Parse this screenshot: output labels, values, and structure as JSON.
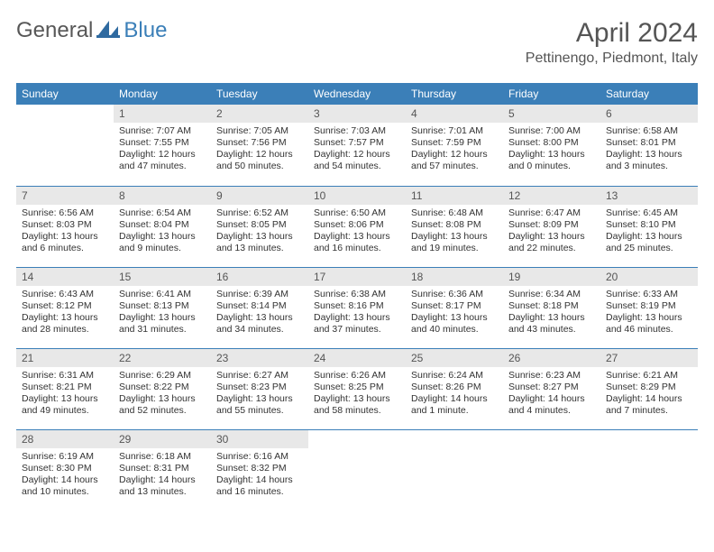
{
  "logo": {
    "general": "General",
    "blue": "Blue"
  },
  "title": "April 2024",
  "location": "Pettinengo, Piedmont, Italy",
  "colors": {
    "header_bg": "#3b7fb8",
    "header_text": "#ffffff",
    "daynum_bg": "#e8e8e8",
    "border": "#3b7fb8",
    "body_text": "#333333"
  },
  "day_labels": [
    "Sunday",
    "Monday",
    "Tuesday",
    "Wednesday",
    "Thursday",
    "Friday",
    "Saturday"
  ],
  "weeks": [
    [
      {
        "n": "",
        "sr": "",
        "ss": "",
        "dl": ""
      },
      {
        "n": "1",
        "sr": "Sunrise: 7:07 AM",
        "ss": "Sunset: 7:55 PM",
        "dl": "Daylight: 12 hours and 47 minutes."
      },
      {
        "n": "2",
        "sr": "Sunrise: 7:05 AM",
        "ss": "Sunset: 7:56 PM",
        "dl": "Daylight: 12 hours and 50 minutes."
      },
      {
        "n": "3",
        "sr": "Sunrise: 7:03 AM",
        "ss": "Sunset: 7:57 PM",
        "dl": "Daylight: 12 hours and 54 minutes."
      },
      {
        "n": "4",
        "sr": "Sunrise: 7:01 AM",
        "ss": "Sunset: 7:59 PM",
        "dl": "Daylight: 12 hours and 57 minutes."
      },
      {
        "n": "5",
        "sr": "Sunrise: 7:00 AM",
        "ss": "Sunset: 8:00 PM",
        "dl": "Daylight: 13 hours and 0 minutes."
      },
      {
        "n": "6",
        "sr": "Sunrise: 6:58 AM",
        "ss": "Sunset: 8:01 PM",
        "dl": "Daylight: 13 hours and 3 minutes."
      }
    ],
    [
      {
        "n": "7",
        "sr": "Sunrise: 6:56 AM",
        "ss": "Sunset: 8:03 PM",
        "dl": "Daylight: 13 hours and 6 minutes."
      },
      {
        "n": "8",
        "sr": "Sunrise: 6:54 AM",
        "ss": "Sunset: 8:04 PM",
        "dl": "Daylight: 13 hours and 9 minutes."
      },
      {
        "n": "9",
        "sr": "Sunrise: 6:52 AM",
        "ss": "Sunset: 8:05 PM",
        "dl": "Daylight: 13 hours and 13 minutes."
      },
      {
        "n": "10",
        "sr": "Sunrise: 6:50 AM",
        "ss": "Sunset: 8:06 PM",
        "dl": "Daylight: 13 hours and 16 minutes."
      },
      {
        "n": "11",
        "sr": "Sunrise: 6:48 AM",
        "ss": "Sunset: 8:08 PM",
        "dl": "Daylight: 13 hours and 19 minutes."
      },
      {
        "n": "12",
        "sr": "Sunrise: 6:47 AM",
        "ss": "Sunset: 8:09 PM",
        "dl": "Daylight: 13 hours and 22 minutes."
      },
      {
        "n": "13",
        "sr": "Sunrise: 6:45 AM",
        "ss": "Sunset: 8:10 PM",
        "dl": "Daylight: 13 hours and 25 minutes."
      }
    ],
    [
      {
        "n": "14",
        "sr": "Sunrise: 6:43 AM",
        "ss": "Sunset: 8:12 PM",
        "dl": "Daylight: 13 hours and 28 minutes."
      },
      {
        "n": "15",
        "sr": "Sunrise: 6:41 AM",
        "ss": "Sunset: 8:13 PM",
        "dl": "Daylight: 13 hours and 31 minutes."
      },
      {
        "n": "16",
        "sr": "Sunrise: 6:39 AM",
        "ss": "Sunset: 8:14 PM",
        "dl": "Daylight: 13 hours and 34 minutes."
      },
      {
        "n": "17",
        "sr": "Sunrise: 6:38 AM",
        "ss": "Sunset: 8:16 PM",
        "dl": "Daylight: 13 hours and 37 minutes."
      },
      {
        "n": "18",
        "sr": "Sunrise: 6:36 AM",
        "ss": "Sunset: 8:17 PM",
        "dl": "Daylight: 13 hours and 40 minutes."
      },
      {
        "n": "19",
        "sr": "Sunrise: 6:34 AM",
        "ss": "Sunset: 8:18 PM",
        "dl": "Daylight: 13 hours and 43 minutes."
      },
      {
        "n": "20",
        "sr": "Sunrise: 6:33 AM",
        "ss": "Sunset: 8:19 PM",
        "dl": "Daylight: 13 hours and 46 minutes."
      }
    ],
    [
      {
        "n": "21",
        "sr": "Sunrise: 6:31 AM",
        "ss": "Sunset: 8:21 PM",
        "dl": "Daylight: 13 hours and 49 minutes."
      },
      {
        "n": "22",
        "sr": "Sunrise: 6:29 AM",
        "ss": "Sunset: 8:22 PM",
        "dl": "Daylight: 13 hours and 52 minutes."
      },
      {
        "n": "23",
        "sr": "Sunrise: 6:27 AM",
        "ss": "Sunset: 8:23 PM",
        "dl": "Daylight: 13 hours and 55 minutes."
      },
      {
        "n": "24",
        "sr": "Sunrise: 6:26 AM",
        "ss": "Sunset: 8:25 PM",
        "dl": "Daylight: 13 hours and 58 minutes."
      },
      {
        "n": "25",
        "sr": "Sunrise: 6:24 AM",
        "ss": "Sunset: 8:26 PM",
        "dl": "Daylight: 14 hours and 1 minute."
      },
      {
        "n": "26",
        "sr": "Sunrise: 6:23 AM",
        "ss": "Sunset: 8:27 PM",
        "dl": "Daylight: 14 hours and 4 minutes."
      },
      {
        "n": "27",
        "sr": "Sunrise: 6:21 AM",
        "ss": "Sunset: 8:29 PM",
        "dl": "Daylight: 14 hours and 7 minutes."
      }
    ],
    [
      {
        "n": "28",
        "sr": "Sunrise: 6:19 AM",
        "ss": "Sunset: 8:30 PM",
        "dl": "Daylight: 14 hours and 10 minutes."
      },
      {
        "n": "29",
        "sr": "Sunrise: 6:18 AM",
        "ss": "Sunset: 8:31 PM",
        "dl": "Daylight: 14 hours and 13 minutes."
      },
      {
        "n": "30",
        "sr": "Sunrise: 6:16 AM",
        "ss": "Sunset: 8:32 PM",
        "dl": "Daylight: 14 hours and 16 minutes."
      },
      {
        "n": "",
        "sr": "",
        "ss": "",
        "dl": ""
      },
      {
        "n": "",
        "sr": "",
        "ss": "",
        "dl": ""
      },
      {
        "n": "",
        "sr": "",
        "ss": "",
        "dl": ""
      },
      {
        "n": "",
        "sr": "",
        "ss": "",
        "dl": ""
      }
    ]
  ]
}
